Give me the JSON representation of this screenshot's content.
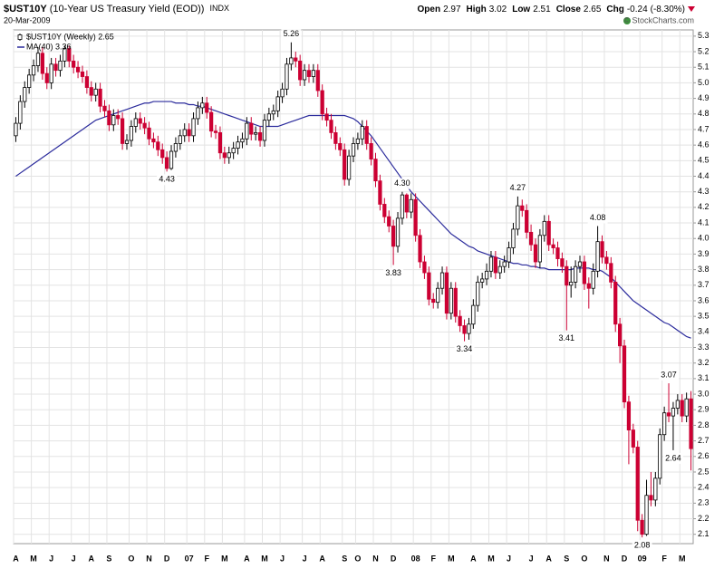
{
  "chart_data": {
    "type": "candlestick",
    "symbol": "$UST10Y",
    "title": "(10-Year US Treasury Yield (EOD))",
    "exchange": "INDX",
    "date": "20-Mar-2009",
    "source": "© StockCharts.com",
    "quote_labels": [
      "Open",
      "High",
      "Low",
      "Close",
      "Chg"
    ],
    "quote": {
      "open": 2.97,
      "high": 3.02,
      "low": 2.51,
      "close": 2.65,
      "chg": -0.24,
      "chg_pct": {
        "value": -8.3,
        "label": "(-8.30%)"
      }
    },
    "up_color": "#000000",
    "down_color": "#cc0033",
    "grid": true,
    "legend": "top-left",
    "ylim": [
      2.04,
      5.34
    ],
    "yticks": [
      2.1,
      2.2,
      2.3,
      2.4,
      2.5,
      2.6,
      2.7,
      2.8,
      2.9,
      {
        "value": 3,
        "label": "3.0"
      },
      3.1,
      3.2,
      3.3,
      3.4,
      3.5,
      3.6,
      3.7,
      3.8,
      3.9,
      {
        "value": 4,
        "label": "4.0"
      },
      4.1,
      4.2,
      4.3,
      4.4,
      4.5,
      4.6,
      4.7,
      4.8,
      4.9,
      {
        "value": 5,
        "label": "5.0"
      },
      5.1,
      5.2,
      5.3
    ],
    "categories": [
      "A",
      null,
      null,
      null,
      "M",
      null,
      null,
      null,
      "J",
      null,
      null,
      null,
      null,
      "J",
      null,
      null,
      null,
      "A",
      null,
      null,
      null,
      "S",
      null,
      null,
      null,
      null,
      "O",
      null,
      null,
      null,
      "N",
      null,
      null,
      null,
      "D",
      null,
      null,
      null,
      null,
      "07",
      null,
      null,
      null,
      "F",
      null,
      null,
      null,
      "M",
      null,
      null,
      null,
      null,
      "A",
      null,
      null,
      null,
      "M",
      null,
      null,
      null,
      "J",
      null,
      null,
      null,
      null,
      "J",
      null,
      null,
      null,
      "A",
      null,
      null,
      null,
      null,
      "S",
      null,
      null,
      "O",
      null,
      null,
      null,
      "N",
      null,
      null,
      null,
      "D",
      null,
      null,
      null,
      null,
      "08",
      null,
      null,
      null,
      "F",
      null,
      null,
      null,
      "M",
      null,
      null,
      null,
      null,
      "A",
      null,
      null,
      null,
      "M",
      null,
      null,
      null,
      "J",
      null,
      null,
      null,
      null,
      "J",
      null,
      null,
      null,
      "A",
      null,
      null,
      null,
      "S",
      null,
      null,
      null,
      "O",
      null,
      null,
      null,
      null,
      "N",
      null,
      null,
      null,
      "D",
      null,
      null,
      null,
      "09",
      null,
      null,
      null,
      null,
      "F",
      null,
      null,
      null,
      "M",
      null,
      null
    ],
    "series": [
      {
        "name": "$UST10Y (Weekly) 2.65",
        "open": [
          4.66,
          4.74,
          4.88,
          4.97,
          5.05,
          5.11,
          5.19,
          5.06,
          5.0,
          5.12,
          5.08,
          5.14,
          5.22,
          5.14,
          5.1,
          5.07,
          5.04,
          4.97,
          4.92,
          4.96,
          4.85,
          4.82,
          4.73,
          4.79,
          4.77,
          4.61,
          4.63,
          4.72,
          4.77,
          4.74,
          4.71,
          4.64,
          4.62,
          4.57,
          4.52,
          4.45,
          4.56,
          4.61,
          4.66,
          4.7,
          4.66,
          4.77,
          4.84,
          4.87,
          4.81,
          4.69,
          4.68,
          4.55,
          4.52,
          4.55,
          4.58,
          4.62,
          4.64,
          4.74,
          4.67,
          4.68,
          4.63,
          4.76,
          4.8,
          4.82,
          4.91,
          4.96,
          5.12,
          5.16,
          5.14,
          5.02,
          5.08,
          5.04,
          5.08,
          4.95,
          4.8,
          4.76,
          4.68,
          4.61,
          4.57,
          4.38,
          4.53,
          4.61,
          4.64,
          4.72,
          4.61,
          4.51,
          4.37,
          4.22,
          4.14,
          4.08,
          3.95,
          4.13,
          4.28,
          4.17,
          4.25,
          4.02,
          3.85,
          3.78,
          3.61,
          3.59,
          3.68,
          3.78,
          3.52,
          3.68,
          3.5,
          3.44,
          3.39,
          3.45,
          3.57,
          3.72,
          3.74,
          3.79,
          3.88,
          3.78,
          3.82,
          3.85,
          3.94,
          4.06,
          4.21,
          4.18,
          4.04,
          3.96,
          3.85,
          4.02,
          4.11,
          3.96,
          3.94,
          3.87,
          3.82,
          3.7,
          3.72,
          3.82,
          3.85,
          3.71,
          3.68,
          3.79,
          3.98,
          3.88,
          3.84,
          3.72,
          3.45,
          3.31,
          2.95,
          2.77,
          2.66,
          2.19,
          2.1,
          2.35,
          2.32,
          2.46,
          2.74,
          2.88,
          2.86,
          2.91,
          2.96,
          2.86,
          2.97
        ],
        "high": [
          4.78,
          4.92,
          5.01,
          5.09,
          5.15,
          5.23,
          5.23,
          5.1,
          5.16,
          5.16,
          5.18,
          5.24,
          5.24,
          5.18,
          5.14,
          5.11,
          5.08,
          5.01,
          5.0,
          5.0,
          4.89,
          4.86,
          4.83,
          4.83,
          4.81,
          4.67,
          4.76,
          4.81,
          4.81,
          4.78,
          4.75,
          4.68,
          4.66,
          4.61,
          4.56,
          4.6,
          4.65,
          4.7,
          4.74,
          4.74,
          4.81,
          4.88,
          4.91,
          4.91,
          4.85,
          4.73,
          4.72,
          4.59,
          4.59,
          4.62,
          4.66,
          4.68,
          4.78,
          4.78,
          4.72,
          4.72,
          4.8,
          4.84,
          4.86,
          4.95,
          5.0,
          5.16,
          5.26,
          5.2,
          5.18,
          5.12,
          5.12,
          5.12,
          5.12,
          4.99,
          4.84,
          4.8,
          4.72,
          4.65,
          4.61,
          4.57,
          4.65,
          4.68,
          4.76,
          4.76,
          4.65,
          4.55,
          4.41,
          4.26,
          4.18,
          4.12,
          4.17,
          4.3,
          4.29,
          4.29,
          4.29,
          4.06,
          3.89,
          3.82,
          3.65,
          3.72,
          3.82,
          3.82,
          3.72,
          3.72,
          3.54,
          3.48,
          3.49,
          3.61,
          3.76,
          3.78,
          3.84,
          3.92,
          3.92,
          3.86,
          3.89,
          3.98,
          4.1,
          4.27,
          4.25,
          4.22,
          4.09,
          4.0,
          4.06,
          4.15,
          4.15,
          4.0,
          3.98,
          3.91,
          3.86,
          3.82,
          3.86,
          3.89,
          3.89,
          3.75,
          3.84,
          4.08,
          4.02,
          3.92,
          3.88,
          3.76,
          3.49,
          3.35,
          2.99,
          2.81,
          2.7,
          2.23,
          2.45,
          2.5,
          2.5,
          2.78,
          2.92,
          3.07,
          2.95,
          3.0,
          3.0,
          3.01,
          3.02
        ],
        "low": [
          4.62,
          4.7,
          4.84,
          4.93,
          5.01,
          5.07,
          5.02,
          4.96,
          4.96,
          5.04,
          5.04,
          5.1,
          5.1,
          5.06,
          5.03,
          5.0,
          4.93,
          4.88,
          4.88,
          4.81,
          4.78,
          4.69,
          4.69,
          4.73,
          4.57,
          4.57,
          4.59,
          4.68,
          4.7,
          4.67,
          4.6,
          4.58,
          4.53,
          4.48,
          4.43,
          4.44,
          4.52,
          4.57,
          4.62,
          4.62,
          4.62,
          4.73,
          4.8,
          4.77,
          4.65,
          4.64,
          4.51,
          4.48,
          4.48,
          4.51,
          4.54,
          4.58,
          4.6,
          4.63,
          4.63,
          4.59,
          4.59,
          4.72,
          4.76,
          4.78,
          4.87,
          4.92,
          5.08,
          5.1,
          4.98,
          4.98,
          5.0,
          5.0,
          4.91,
          4.76,
          4.72,
          4.64,
          4.57,
          4.53,
          4.34,
          4.34,
          4.49,
          4.57,
          4.6,
          4.57,
          4.47,
          4.33,
          4.18,
          4.1,
          4.04,
          3.83,
          3.91,
          4.09,
          4.13,
          4.13,
          3.98,
          3.81,
          3.74,
          3.57,
          3.55,
          3.55,
          3.64,
          3.48,
          3.48,
          3.46,
          3.4,
          3.34,
          3.35,
          3.42,
          3.53,
          3.68,
          3.7,
          3.75,
          3.74,
          3.74,
          3.78,
          3.81,
          3.9,
          4.02,
          4.14,
          4.0,
          3.92,
          3.81,
          3.81,
          3.98,
          3.92,
          3.9,
          3.82,
          3.78,
          3.41,
          3.62,
          3.68,
          3.78,
          3.67,
          3.55,
          3.64,
          3.75,
          3.84,
          3.8,
          3.68,
          3.4,
          3.2,
          2.91,
          2.55,
          2.62,
          2.12,
          2.08,
          2.09,
          2.28,
          2.28,
          2.42,
          2.7,
          2.82,
          2.64,
          2.87,
          2.82,
          2.82,
          2.51
        ],
        "close": [
          4.74,
          4.88,
          4.97,
          5.05,
          5.11,
          5.19,
          5.06,
          5.0,
          5.12,
          5.08,
          5.14,
          5.22,
          5.14,
          5.1,
          5.07,
          5.04,
          4.97,
          4.92,
          4.96,
          4.85,
          4.82,
          4.73,
          4.79,
          4.77,
          4.61,
          4.63,
          4.72,
          4.77,
          4.74,
          4.71,
          4.64,
          4.62,
          4.57,
          4.52,
          4.45,
          4.56,
          4.61,
          4.66,
          4.7,
          4.66,
          4.77,
          4.84,
          4.87,
          4.81,
          4.69,
          4.68,
          4.55,
          4.52,
          4.55,
          4.58,
          4.62,
          4.64,
          4.74,
          4.67,
          4.68,
          4.63,
          4.76,
          4.8,
          4.82,
          4.91,
          4.96,
          5.12,
          5.16,
          5.14,
          5.02,
          5.08,
          5.04,
          5.08,
          4.95,
          4.8,
          4.76,
          4.68,
          4.61,
          4.57,
          4.38,
          4.53,
          4.61,
          4.64,
          4.72,
          4.61,
          4.51,
          4.37,
          4.22,
          4.14,
          4.08,
          3.95,
          4.13,
          4.28,
          4.17,
          4.25,
          4.02,
          3.85,
          3.78,
          3.61,
          3.59,
          3.68,
          3.78,
          3.52,
          3.68,
          3.5,
          3.44,
          3.39,
          3.45,
          3.57,
          3.72,
          3.74,
          3.79,
          3.88,
          3.78,
          3.82,
          3.85,
          3.94,
          4.06,
          4.21,
          4.18,
          4.04,
          3.96,
          3.85,
          4.02,
          4.11,
          3.96,
          3.94,
          3.87,
          3.82,
          3.7,
          3.72,
          3.82,
          3.85,
          3.71,
          3.68,
          3.79,
          3.98,
          3.88,
          3.84,
          3.72,
          3.45,
          3.31,
          2.95,
          2.77,
          2.66,
          2.19,
          2.1,
          2.35,
          2.32,
          2.46,
          2.74,
          2.88,
          2.86,
          2.91,
          2.96,
          2.86,
          2.97,
          2.65
        ]
      },
      {
        "name": "MA(40) 3.36",
        "color": "#2b2b9c",
        "values": [
          4.4,
          4.42,
          4.44,
          4.46,
          4.48,
          4.5,
          4.52,
          4.54,
          4.56,
          4.58,
          4.6,
          4.62,
          4.64,
          4.66,
          4.68,
          4.7,
          4.72,
          4.74,
          4.76,
          4.77,
          4.78,
          4.79,
          4.8,
          4.81,
          4.82,
          4.83,
          4.84,
          4.85,
          4.86,
          4.87,
          4.87,
          4.88,
          4.88,
          4.88,
          4.88,
          4.88,
          4.87,
          4.87,
          4.87,
          4.86,
          4.86,
          4.85,
          4.85,
          4.84,
          4.83,
          4.82,
          4.81,
          4.8,
          4.79,
          4.78,
          4.77,
          4.76,
          4.75,
          4.74,
          4.73,
          4.72,
          4.72,
          4.72,
          4.72,
          4.72,
          4.73,
          4.74,
          4.75,
          4.76,
          4.77,
          4.78,
          4.79,
          4.79,
          4.79,
          4.79,
          4.79,
          4.79,
          4.79,
          4.79,
          4.79,
          4.78,
          4.77,
          4.75,
          4.72,
          4.69,
          4.66,
          4.62,
          4.58,
          4.54,
          4.5,
          4.46,
          4.42,
          4.38,
          4.34,
          4.3,
          4.27,
          4.24,
          4.21,
          4.18,
          4.15,
          4.12,
          4.09,
          4.06,
          4.03,
          4.01,
          3.99,
          3.97,
          3.95,
          3.94,
          3.92,
          3.91,
          3.9,
          3.89,
          3.88,
          3.87,
          3.86,
          3.85,
          3.84,
          3.84,
          3.83,
          3.83,
          3.82,
          3.82,
          3.81,
          3.81,
          3.8,
          3.8,
          3.8,
          3.8,
          3.8,
          3.8,
          3.81,
          3.81,
          3.81,
          3.81,
          3.8,
          3.8,
          3.79,
          3.77,
          3.75,
          3.72,
          3.69,
          3.66,
          3.63,
          3.6,
          3.58,
          3.56,
          3.54,
          3.52,
          3.5,
          3.48,
          3.46,
          3.45,
          3.43,
          3.41,
          3.39,
          3.37,
          3.36
        ]
      }
    ],
    "annotations": [
      {
        "value": 5.26,
        "label": "5.26"
      },
      {
        "value": 4.43,
        "label": "4.43"
      },
      {
        "value": 4.3,
        "label": "4.30"
      },
      {
        "value": 3.83,
        "label": "3.83"
      },
      {
        "value": 3.34,
        "label": "3.34"
      },
      {
        "value": 4.27,
        "label": "4.27"
      },
      {
        "value": 3.41,
        "label": "3.41"
      },
      {
        "value": 4.08,
        "label": "4.08"
      },
      {
        "value": 3.07,
        "label": "3.07"
      },
      {
        "value": 2.64,
        "label": "2.64"
      },
      {
        "value": 2.08,
        "label": "2.08"
      }
    ]
  }
}
